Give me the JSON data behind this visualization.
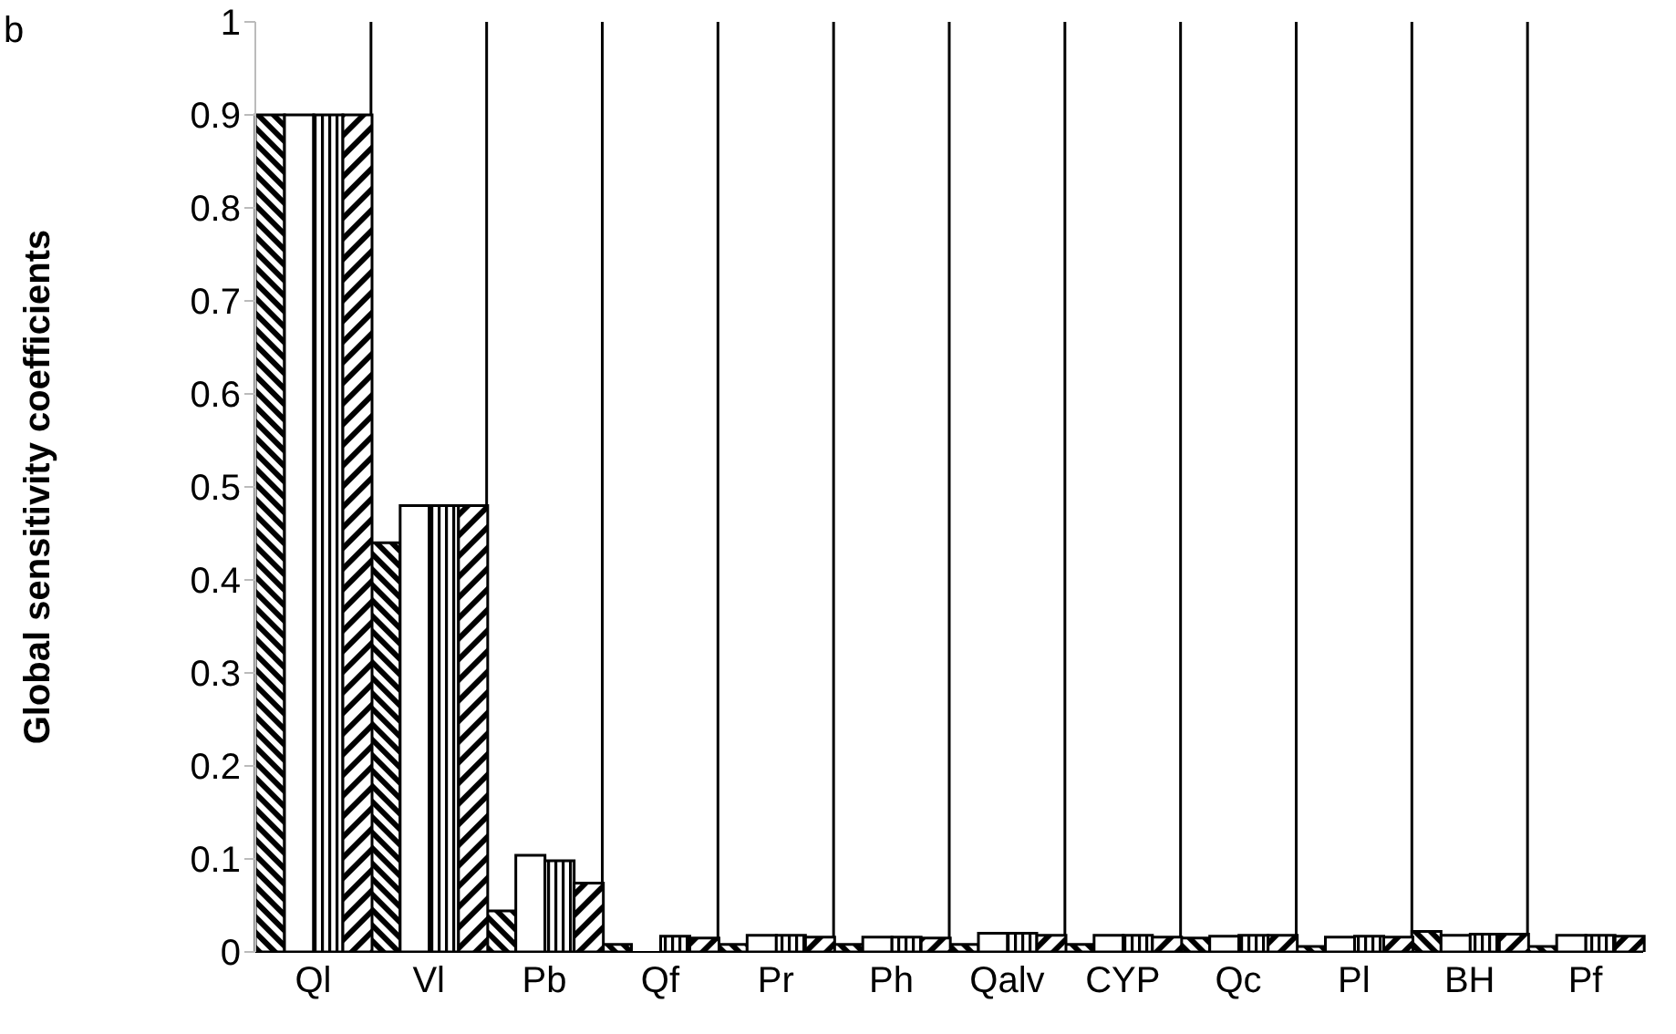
{
  "chart_data": {
    "type": "bar",
    "title": "b",
    "ylabel": "Global sensitivity coefficients",
    "categories": [
      "Ql",
      "Vl",
      "Pb",
      "Qf",
      "Pr",
      "Ph",
      "Qalv",
      "CYP",
      "Qc",
      "Pl",
      "BH",
      "Pf"
    ],
    "series": [
      {
        "color": "#000000",
        "values": [
          0.9,
          0.44,
          0.044,
          0.008,
          0.008,
          0.008,
          0.008,
          0.008,
          0.015,
          0.006,
          0.022,
          0.006
        ]
      },
      {
        "color": "#ffffff",
        "values": [
          0.9,
          0.48,
          0.104,
          0,
          0.018,
          0.016,
          0.02,
          0.018,
          0.017,
          0.016,
          0.018,
          0.018
        ]
      },
      {
        "color": "#000000",
        "values": [
          0.9,
          0.48,
          0.098,
          0.017,
          0.018,
          0.016,
          0.02,
          0.018,
          0.018,
          0.017,
          0.019,
          0.018
        ]
      },
      {
        "color": "#000000",
        "values": [
          0.9,
          0.48,
          0.074,
          0.015,
          0.016,
          0.015,
          0.018,
          0.016,
          0.018,
          0.016,
          0.019,
          0.017
        ]
      }
    ],
    "ylim": [
      0,
      1
    ],
    "yticks": [
      0,
      0.1,
      0.2,
      0.3,
      0.4,
      0.5,
      0.6,
      0.7,
      0.8,
      0.9,
      1
    ],
    "grid": "x",
    "legend": false
  }
}
